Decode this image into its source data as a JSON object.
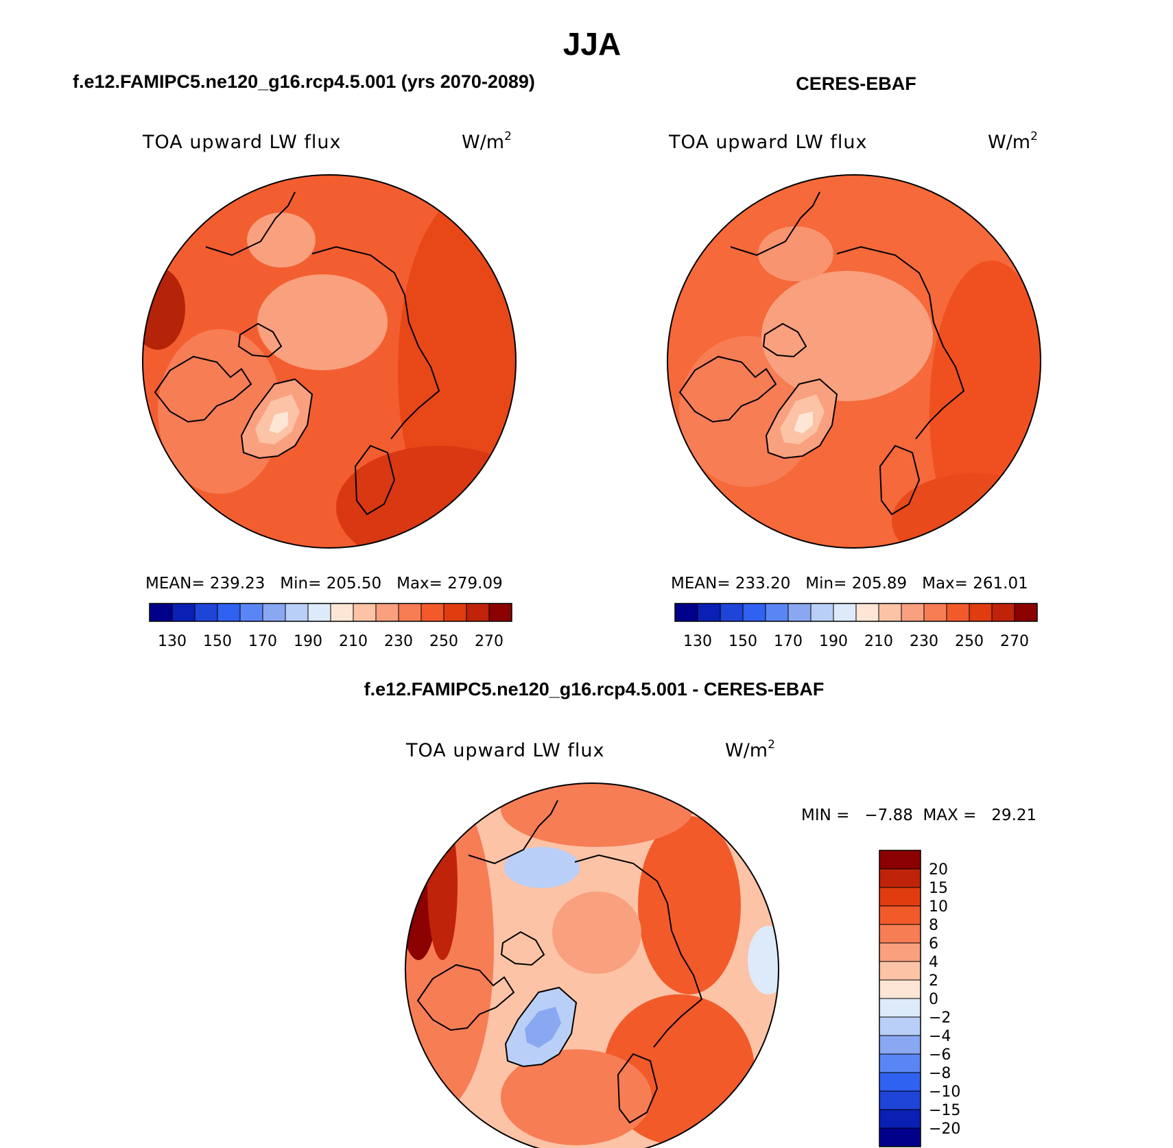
{
  "chart_data": {
    "type": "heatmap",
    "title": "JJA",
    "colors": {
      "abs_scale": [
        "#00008b",
        "#0a1fb4",
        "#1e44d8",
        "#2f62f0",
        "#5a86f5",
        "#8aa7f2",
        "#b9cff7",
        "#dceaf9",
        "#fde6d6",
        "#fcc3a6",
        "#f9a07f",
        "#f77d55",
        "#f25a2a",
        "#e03c10",
        "#bf230a",
        "#8b0000"
      ],
      "diff_scale": [
        "#8b0000",
        "#bf230a",
        "#e03c10",
        "#f25a2a",
        "#f77d55",
        "#f9a07f",
        "#fcc3a6",
        "#fde6d6",
        "#dceaf9",
        "#b9cff7",
        "#8aa7f2",
        "#5a86f5",
        "#2f62f0",
        "#1e44d8",
        "#0a1fb4",
        "#00008b"
      ]
    },
    "panels": [
      {
        "id": "model",
        "title": "f.e12.FAMIPC5.ne120_g16.rcp4.5.001 (yrs 2070-2089)",
        "variable": "TOA upward LW flux",
        "units_base": "W/m",
        "units_exp": "2",
        "stats_text": "MEAN= 239.23   Min= 205.50   Max= 279.09",
        "stats": {
          "mean": 239.23,
          "min": 205.5,
          "max": 279.09
        },
        "colorbar_ticks": [
          "130",
          "150",
          "170",
          "190",
          "210",
          "230",
          "250",
          "270"
        ]
      },
      {
        "id": "obs",
        "title": "CERES-EBAF",
        "variable": "TOA upward LW flux",
        "units_base": "W/m",
        "units_exp": "2",
        "stats_text": "MEAN= 233.20   Min= 205.89   Max= 261.01",
        "stats": {
          "mean": 233.2,
          "min": 205.89,
          "max": 261.01
        },
        "colorbar_ticks": [
          "130",
          "150",
          "170",
          "190",
          "210",
          "230",
          "250",
          "270"
        ]
      },
      {
        "id": "diff",
        "title": "f.e12.FAMIPC5.ne120_g16.rcp4.5.001 - CERES-EBAF",
        "variable": "TOA upward LW flux",
        "units_base": "W/m",
        "units_exp": "2",
        "stats_text": "MIN =   −7.88  MAX =   29.21",
        "stats": {
          "min": -7.88,
          "max": 29.21
        },
        "colorbar_ticks": [
          "20",
          "15",
          "10",
          "8",
          "6",
          "4",
          "2",
          "0",
          "−2",
          "−4",
          "−6",
          "−8",
          "−10",
          "−15",
          "−20"
        ]
      }
    ]
  }
}
